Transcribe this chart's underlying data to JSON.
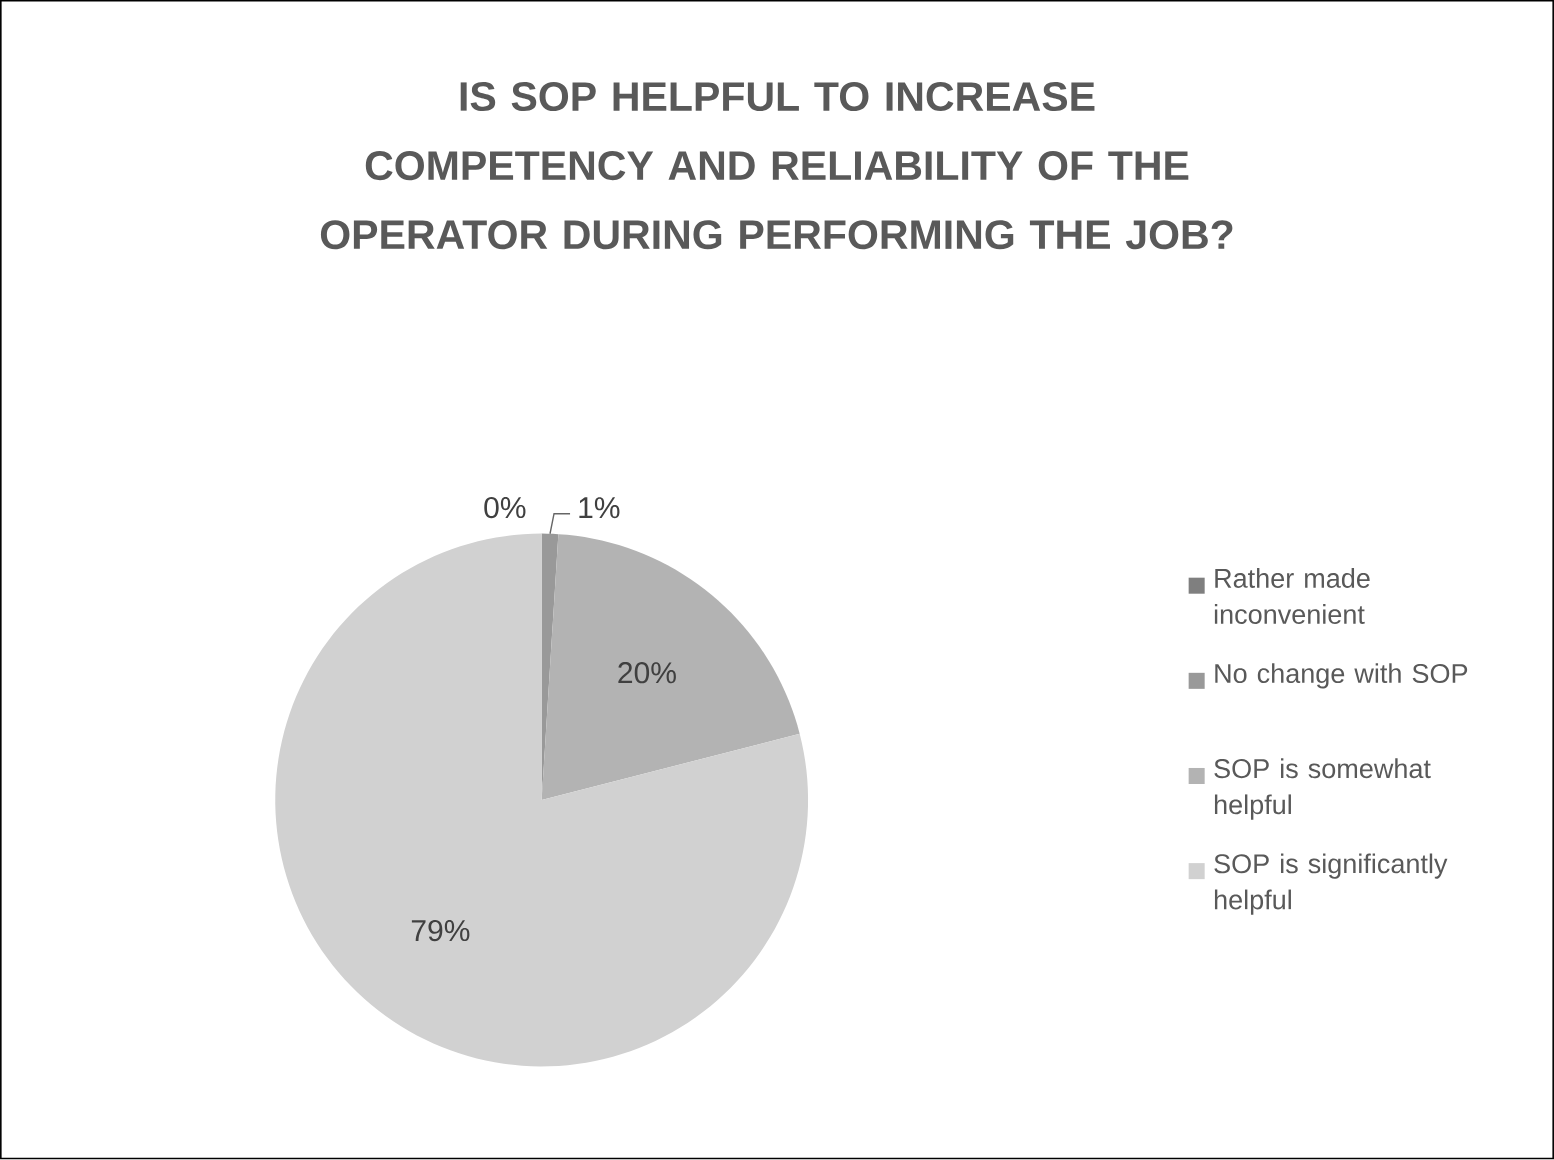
{
  "chart_data": {
    "type": "pie",
    "title": "IS SOP HELPFUL TO INCREASE COMPETENCY AND RELIABILITY OF THE OPERATOR DURING PERFORMING THE JOB?",
    "categories": [
      "Rather  made inconvenient",
      "No change with SOP",
      "SOP is somewhat helpful",
      "SOP is significantly helpful"
    ],
    "values": [
      0,
      1,
      20,
      79
    ],
    "colors": [
      "#7f7f7f",
      "#999999",
      "#b3b3b3",
      "#d1d1d1"
    ],
    "value_labels": [
      "0%",
      "1%",
      "20%",
      "79%"
    ],
    "legend": "right"
  }
}
